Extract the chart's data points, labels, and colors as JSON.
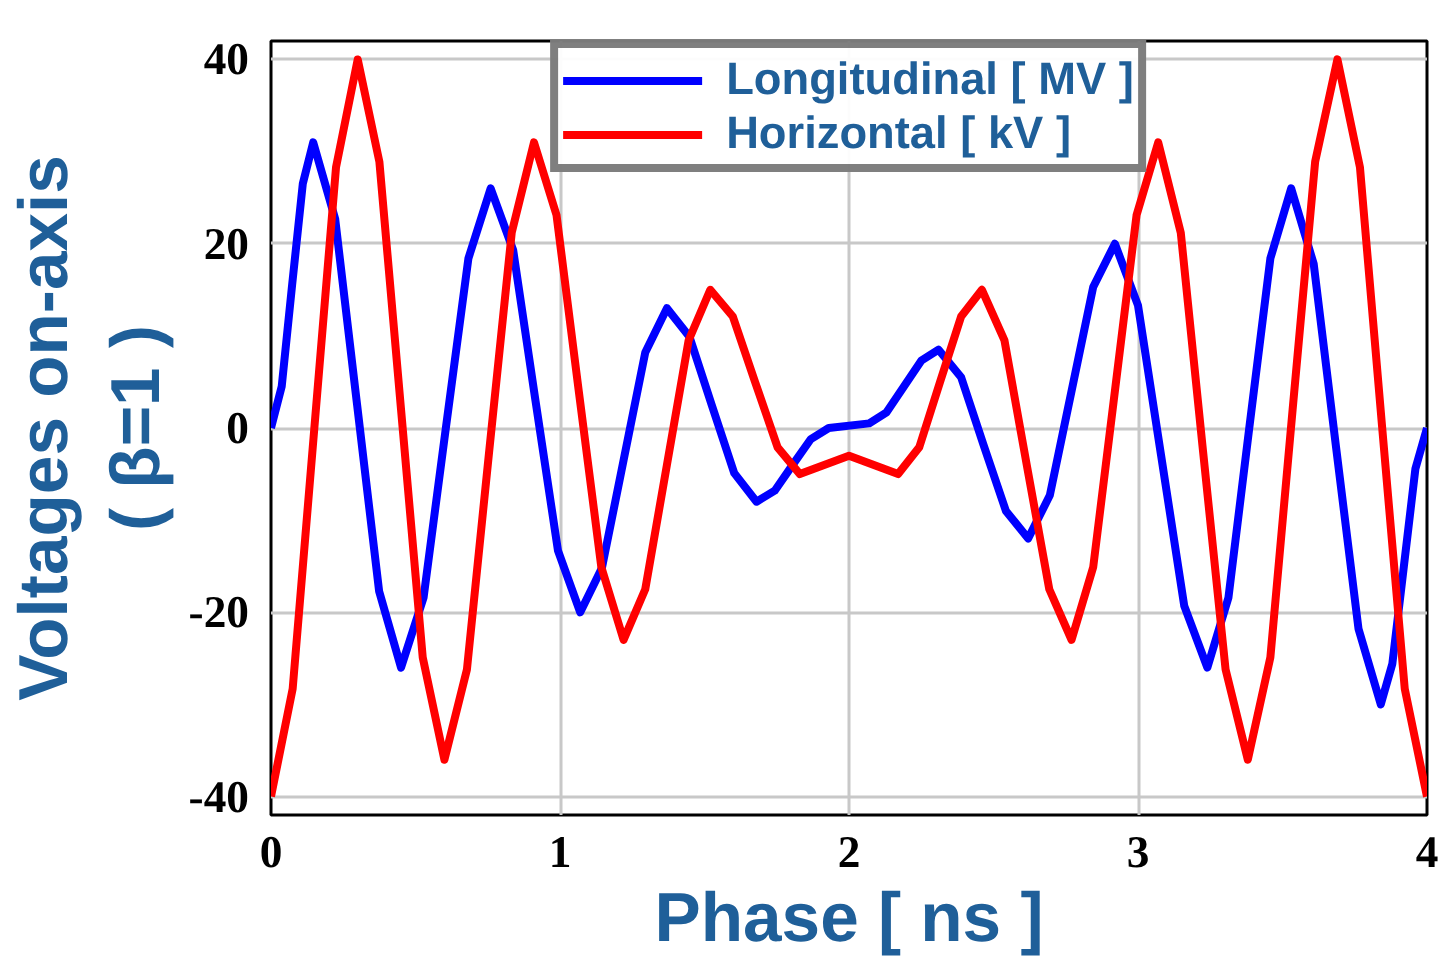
{
  "chart_data": {
    "type": "line",
    "xlabel": "Phase [ ns ]",
    "ylabel": "Voltages on-axis\n( β=1 )",
    "xlim": [
      0,
      4
    ],
    "ylim": [
      -42,
      42
    ],
    "xticks": [
      0,
      1,
      2,
      3,
      4
    ],
    "yticks": [
      -40,
      -20,
      0,
      20,
      40
    ],
    "grid": true,
    "legend": "top",
    "line_style": "solid",
    "marker": "none",
    "series": [
      {
        "name": "Longitudinal [ MV ]",
        "color": "#0000ff",
        "x": [
          0,
          0.037,
          0.073,
          0.11,
          0.146,
          0.222,
          0.298,
          0.374,
          0.45,
          0.528,
          0.605,
          0.683,
          0.76,
          0.838,
          0.915,
          0.993,
          1.07,
          1.145,
          1.22,
          1.295,
          1.37,
          1.448,
          1.525,
          1.603,
          1.68,
          1.743,
          1.805,
          1.868,
          1.93,
          2.07,
          2.13,
          2.19,
          2.25,
          2.31,
          2.388,
          2.465,
          2.543,
          2.62,
          2.695,
          2.77,
          2.845,
          2.92,
          3.0,
          3.08,
          3.16,
          3.24,
          3.313,
          3.385,
          3.458,
          3.53,
          3.608,
          3.685,
          3.763,
          3.84,
          3.88,
          3.92,
          3.96,
          4
        ],
        "values": [
          0,
          4.5,
          15.5,
          26.5,
          31,
          22.7,
          2.5,
          -17.7,
          -26,
          -18.4,
          0,
          18.4,
          26,
          19.3,
          3,
          -13.3,
          -20,
          -15.2,
          -3.5,
          8.2,
          13,
          9.9,
          2.5,
          -4.9,
          -8,
          -6.8,
          -4,
          -1.2,
          0,
          0.5,
          1.7,
          4.5,
          7.3,
          8.5,
          5.5,
          -1.8,
          -9,
          -12,
          -7.3,
          4,
          15.3,
          20,
          13.3,
          -3,
          -19.3,
          -26,
          -18.4,
          0,
          18.4,
          26,
          17.8,
          -2,
          -21.8,
          -30,
          -25.6,
          -15,
          -4.4,
          0
        ]
      },
      {
        "name": "Horizontal [ kV ]",
        "color": "#ff0000",
        "x": [
          0,
          0.075,
          0.15,
          0.225,
          0.3,
          0.375,
          0.45,
          0.525,
          0.6,
          0.678,
          0.755,
          0.833,
          0.91,
          0.988,
          1.065,
          1.143,
          1.22,
          1.295,
          1.37,
          1.445,
          1.52,
          1.598,
          1.675,
          1.753,
          1.83,
          2.0,
          2.17,
          2.243,
          2.315,
          2.388,
          2.46,
          2.538,
          2.615,
          2.693,
          2.77,
          2.845,
          2.92,
          2.995,
          3.07,
          3.148,
          3.225,
          3.303,
          3.38,
          3.458,
          3.535,
          3.613,
          3.69,
          3.768,
          3.845,
          3.923,
          4
        ],
        "values": [
          -40,
          -28.3,
          0,
          28.3,
          40,
          28.9,
          2,
          -24.9,
          -36,
          -26.2,
          -2.5,
          21.2,
          31,
          23.1,
          4,
          -15.1,
          -23,
          -17.5,
          -4,
          9.5,
          15,
          12.1,
          5,
          -2.1,
          -5,
          -3,
          -5,
          -2.1,
          5,
          12.1,
          15,
          9.5,
          -4,
          -17.5,
          -23,
          -15.1,
          4,
          23.1,
          31,
          21.2,
          -2.5,
          -26.2,
          -36,
          -24.9,
          2,
          28.9,
          40,
          28.3,
          0,
          -28.3,
          -40
        ]
      }
    ]
  }
}
